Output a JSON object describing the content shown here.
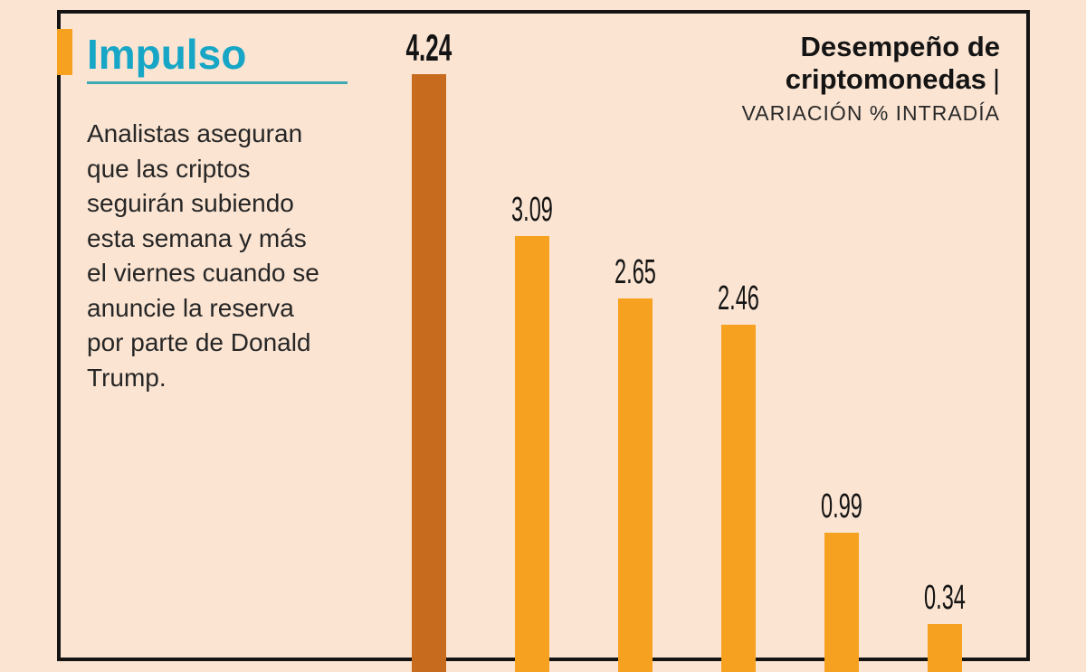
{
  "page": {
    "background_color": "#FBE4D2",
    "frame_color": "#141414"
  },
  "kicker": {
    "title": "Impulso",
    "title_color": "#17A6C6",
    "marker_color": "#F7A120",
    "underline_color": "#3FA9B6"
  },
  "intro": {
    "lines": [
      "Analistas aseguran",
      "que las criptos",
      "seguirán subiendo",
      "esta semana y más",
      "el viernes cuando se",
      "anuncie la reserva",
      "por parte de Donald",
      "Trump."
    ]
  },
  "chart_header": {
    "title_line1": "Desempeño de",
    "title_line2": "criptomonedas",
    "separator": "|",
    "subtitle": "VARIACIÓN % INTRADÍA"
  },
  "chart_data": {
    "type": "bar",
    "title": "Desempeño de criptomonedas",
    "subtitle": "VARIACIÓN % INTRADÍA",
    "values": [
      4.24,
      3.09,
      2.65,
      2.46,
      0.99,
      0.34
    ],
    "labels": [
      "4.24",
      "3.09",
      "2.65",
      "2.46",
      "0.99",
      "0.34"
    ],
    "highlight_index": 0,
    "bar_color": "#F7A120",
    "highlight_color": "#C76C1E",
    "label_color": "#141414",
    "ylim": [
      0,
      4.24
    ],
    "grid": false,
    "baseline_cropped": true
  }
}
